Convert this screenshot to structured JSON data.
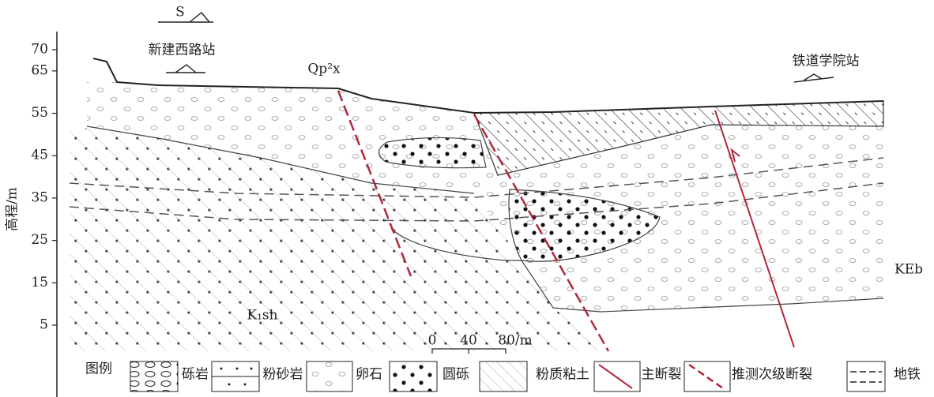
{
  "axis": {
    "label": "高程/m",
    "ticks": [
      70,
      65,
      55,
      45,
      35,
      25,
      15,
      5
    ]
  },
  "labels": {
    "north": "S",
    "station_west": "新建西路站",
    "stratum_top": "Qp²x",
    "station_east": "铁道学院站",
    "stratum_left": "K₁sh",
    "stratum_right": "KEb"
  },
  "scale": {
    "marks": [
      "0",
      "40",
      "80/m"
    ]
  },
  "legend": {
    "title": "图例",
    "items": [
      "砾岩",
      "粉砂岩",
      "卵石",
      "圆砾",
      "粉质粘土",
      "主断裂",
      "推测次级断裂",
      "地铁"
    ]
  }
}
